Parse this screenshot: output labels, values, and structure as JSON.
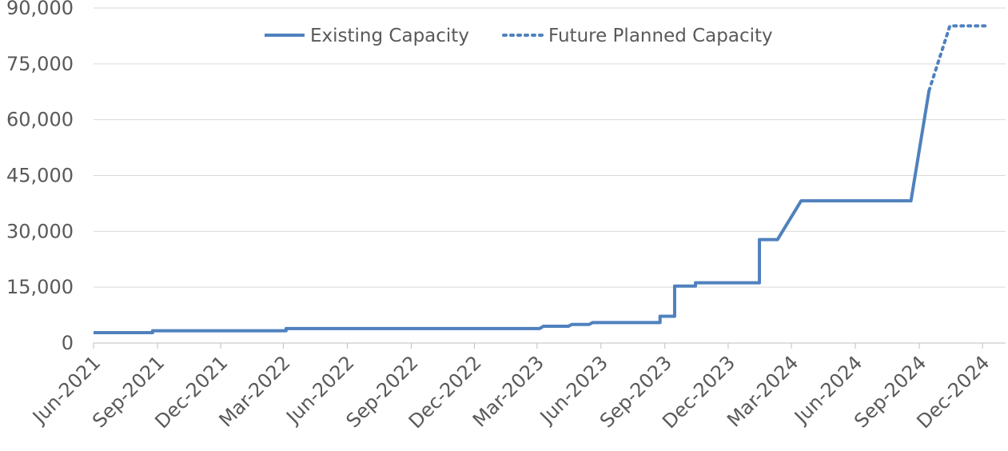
{
  "chart_data": {
    "type": "line",
    "title": "",
    "xlabel": "",
    "ylabel": "",
    "ylim": [
      0,
      90000
    ],
    "grid": true,
    "legend_position": "top-center",
    "y_ticks": [
      0,
      15000,
      30000,
      45000,
      60000,
      75000,
      90000
    ],
    "y_tick_labels": [
      "0",
      "15,000",
      "30,000",
      "45,000",
      "60,000",
      "75,000",
      "90,000"
    ],
    "x_ticks": [
      "2021-06-01",
      "2021-09-01",
      "2021-12-01",
      "2022-03-01",
      "2022-06-01",
      "2022-09-01",
      "2022-12-01",
      "2023-03-01",
      "2023-06-01",
      "2023-09-01",
      "2023-12-01",
      "2024-03-01",
      "2024-06-01",
      "2024-09-01",
      "2024-12-01"
    ],
    "x_tick_labels": [
      "Jun-2021",
      "Sep-2021",
      "Dec-2021",
      "Mar-2022",
      "Jun-2022",
      "Sep-2022",
      "Dec-2022",
      "Mar-2023",
      "Jun-2023",
      "Sep-2023",
      "Dec-2023",
      "Mar-2024",
      "Jun-2024",
      "Sep-2024",
      "Dec-2024"
    ],
    "colors": {
      "series": "#4f81bd",
      "grid": "#d9d9d9",
      "text": "#595959"
    },
    "series": [
      {
        "name": "Existing Capacity",
        "style": "solid",
        "points": [
          [
            "2021-06-01",
            2800
          ],
          [
            "2021-08-25",
            2800
          ],
          [
            "2021-08-25",
            3300
          ],
          [
            "2022-03-05",
            3300
          ],
          [
            "2022-03-05",
            3900
          ],
          [
            "2023-03-05",
            3900
          ],
          [
            "2023-03-10",
            4500
          ],
          [
            "2023-04-15",
            4500
          ],
          [
            "2023-04-20",
            5000
          ],
          [
            "2023-05-15",
            5000
          ],
          [
            "2023-05-20",
            5500
          ],
          [
            "2023-08-25",
            5500
          ],
          [
            "2023-08-25",
            7200
          ],
          [
            "2023-09-15",
            7200
          ],
          [
            "2023-09-15",
            15300
          ],
          [
            "2023-10-15",
            15300
          ],
          [
            "2023-10-15",
            16200
          ],
          [
            "2024-01-15",
            16200
          ],
          [
            "2024-01-15",
            27800
          ],
          [
            "2024-02-10",
            27800
          ],
          [
            "2024-03-15",
            38200
          ],
          [
            "2024-08-20",
            38200
          ],
          [
            "2024-09-15",
            67800
          ]
        ]
      },
      {
        "name": "Future Planned Capacity",
        "style": "dotted",
        "points": [
          [
            "2024-09-15",
            67800
          ],
          [
            "2024-10-15",
            85200
          ],
          [
            "2024-12-05",
            85200
          ]
        ]
      }
    ]
  }
}
